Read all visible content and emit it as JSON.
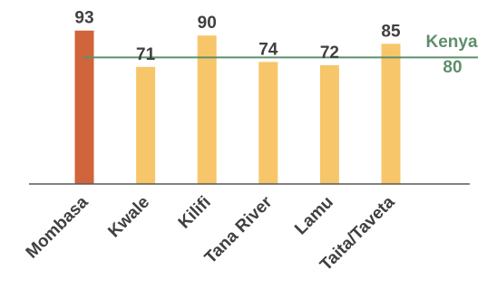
{
  "chart_data": {
    "type": "bar",
    "categories": [
      "Mombasa",
      "Kwale",
      "Kilifi",
      "Tana River",
      "Lamu",
      "Taita/Taveta"
    ],
    "values": [
      93,
      71,
      90,
      74,
      72,
      85
    ],
    "ylim": [
      0,
      100
    ],
    "grid": false,
    "colors": {
      "highlight": "#D0643A",
      "bar": "#F7C66B",
      "reference": "#5E8F6B",
      "axis": "#595959",
      "text": "#404040"
    },
    "highlight_index": 0,
    "reference_line": {
      "name": "Kenya",
      "value": 80,
      "value_label": "80"
    }
  }
}
